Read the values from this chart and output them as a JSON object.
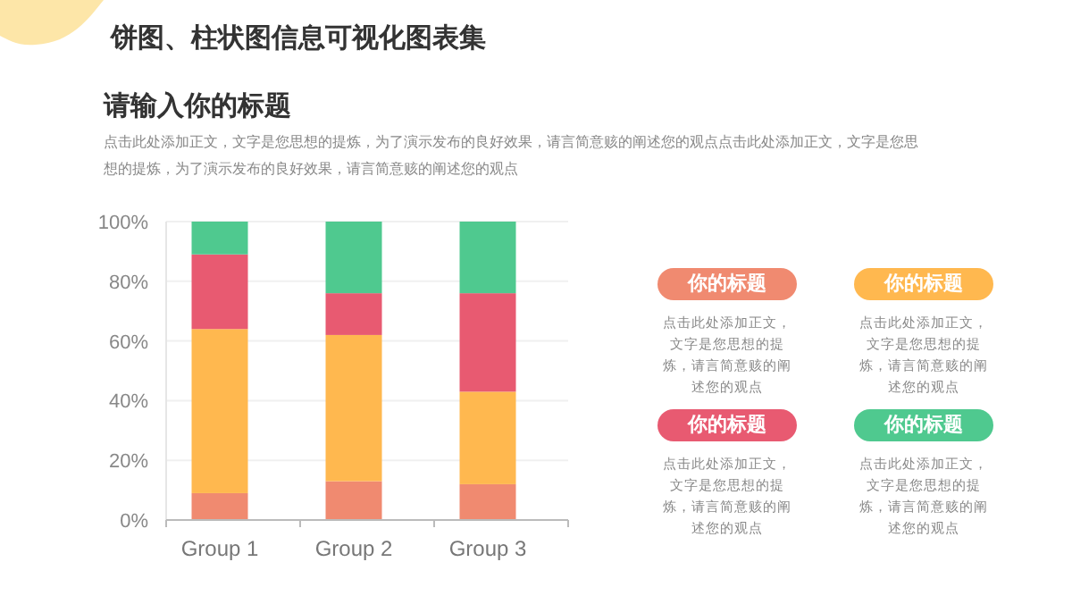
{
  "chart_data": {
    "type": "bar",
    "title": "饼图、柱状图信息可视化图表集",
    "subtitle": "请输入你的标题",
    "annotations": [
      "点击此处添加正文，文字是您思想的提炼，为了演示发布的良好效果，请言简意赅的阐述您的观点点击此处添加正文，文字是您思想的提炼，为了演示发布的良好效果，请言简意赅的阐述您的观点",
      "你的标题",
      "点击此处添加正文，文字是您思想的提炼，请言简意赅的阐述您的观点",
      "你的标题",
      "点击此处添加正文，文字是您思想的提炼，请言简意赅的阐述您的观点",
      "你的标题",
      "点击此处添加正文，文字是您思想的提炼，请言简意赅的阐述您的观点",
      "你的标题",
      "点击此处添加正文，文字是您思想的提炼，请言简意赅的阐述您的观点"
    ],
    "categories": [
      "Group 1",
      "Group 2",
      "Group 3"
    ],
    "stacked": true,
    "series": [
      {
        "color": "#f08a70",
        "values": [
          9,
          13,
          12
        ]
      },
      {
        "color": "#ffb84f",
        "values": [
          55,
          49,
          31
        ]
      },
      {
        "color": "#e85a71",
        "values": [
          25,
          14,
          33
        ]
      },
      {
        "color": "#4fc98f",
        "values": [
          11,
          24,
          24
        ]
      }
    ],
    "ylim": [
      0,
      100
    ],
    "yticks": [
      {
        "value": 0,
        "label": "0%"
      },
      {
        "value": 20,
        "label": "20%"
      },
      {
        "value": 40,
        "label": "40%"
      },
      {
        "value": 60,
        "label": "60%"
      },
      {
        "value": 80,
        "label": "80%"
      },
      {
        "value": 100,
        "label": "100%"
      }
    ],
    "grid": "y"
  }
}
